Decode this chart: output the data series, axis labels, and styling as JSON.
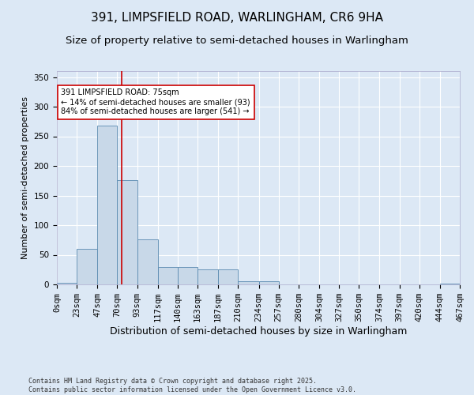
{
  "title1": "391, LIMPSFIELD ROAD, WARLINGHAM, CR6 9HA",
  "title2": "Size of property relative to semi-detached houses in Warlingham",
  "xlabel": "Distribution of semi-detached houses by size in Warlingham",
  "ylabel": "Number of semi-detached properties",
  "footnote1": "Contains HM Land Registry data © Crown copyright and database right 2025.",
  "footnote2": "Contains public sector information licensed under the Open Government Licence v3.0.",
  "annotation_line1": "391 LIMPSFIELD ROAD: 75sqm",
  "annotation_line2": "← 14% of semi-detached houses are smaller (93)",
  "annotation_line3": "84% of semi-detached houses are larger (541) →",
  "bar_color": "#c8d8e8",
  "bar_edge_color": "#5a8ab0",
  "vline_color": "#cc0000",
  "background_color": "#dce8f5",
  "bin_edges": [
    0,
    23,
    47,
    70,
    93,
    117,
    140,
    163,
    187,
    210,
    234,
    257,
    280,
    304,
    327,
    350,
    374,
    397,
    420,
    444,
    467
  ],
  "bar_heights": [
    3,
    60,
    268,
    176,
    76,
    30,
    30,
    25,
    25,
    5,
    5,
    0,
    0,
    0,
    0,
    0,
    0,
    0,
    0,
    1
  ],
  "property_size": 75,
  "ylim": [
    0,
    360
  ],
  "yticks": [
    0,
    50,
    100,
    150,
    200,
    250,
    300,
    350
  ],
  "title1_fontsize": 11,
  "title2_fontsize": 9.5,
  "xlabel_fontsize": 9,
  "ylabel_fontsize": 8,
  "tick_fontsize": 7.5,
  "footnote_fontsize": 6,
  "annot_fontsize": 7
}
